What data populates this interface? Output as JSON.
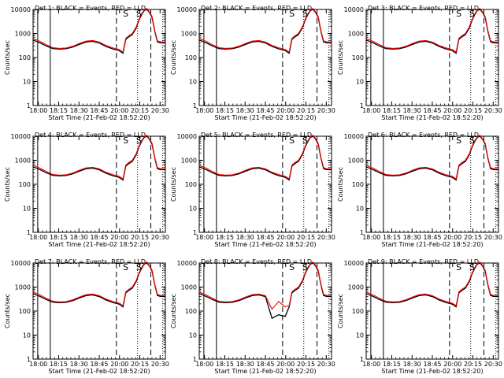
{
  "chart_data": {
    "type": "line",
    "common": {
      "xlabel": "Start Time (21-Feb-02 18:52:20)",
      "ylabel": "Counts/sec",
      "x_tick_labels": [
        "18:00",
        "18:15",
        "18:30",
        "18:45",
        "20:00",
        "20:15",
        "20:30"
      ],
      "y_tick_labels": [
        "1",
        "10",
        "100",
        "1000",
        "10000"
      ],
      "y_scale": "log",
      "ylim": [
        1,
        10000
      ],
      "grid": false,
      "x": [
        0.0,
        0.03,
        0.06,
        0.1,
        0.15,
        0.2,
        0.25,
        0.3,
        0.35,
        0.4,
        0.45,
        0.5,
        0.55,
        0.6,
        0.65,
        0.68,
        0.7,
        0.72,
        0.75,
        0.78,
        0.8,
        0.82,
        0.84,
        0.86,
        0.88,
        0.9,
        0.92,
        0.94,
        0.96,
        1.0
      ],
      "events_values": [
        540,
        460,
        390,
        300,
        235,
        225,
        232,
        270,
        350,
        440,
        470,
        400,
        290,
        230,
        195,
        150,
        560,
        700,
        900,
        1700,
        3500,
        6000,
        9000,
        10000,
        7500,
        4500,
        1200,
        450,
        410,
        400
      ],
      "lld_values": [
        620,
        530,
        450,
        340,
        255,
        240,
        250,
        295,
        385,
        480,
        510,
        440,
        320,
        255,
        215,
        170,
        620,
        780,
        1000,
        1900,
        3800,
        6500,
        9500,
        11000,
        8000,
        5000,
        1300,
        500,
        450,
        440
      ],
      "solid_lines_x": [
        0.035,
        0.13
      ],
      "dashed_lines_x": [
        0.63,
        0.89
      ],
      "dotted_lines_x": [
        0.79,
        0.98
      ],
      "markers": [
        {
          "label": "S",
          "x": 0.7
        },
        {
          "label": "S",
          "x": 0.8
        }
      ]
    },
    "panels": [
      {
        "title": "Det 1: BLACK = Events, RED = LLD"
      },
      {
        "title": "Det 2: BLACK = Events, RED = LLD"
      },
      {
        "title": "Det 3: BLACK = Events, RED = LLD"
      },
      {
        "title": "Det 4: BLACK = Events, RED = LLD"
      },
      {
        "title": "Det 5: BLACK = Events, RED = LLD"
      },
      {
        "title": "Det 6: BLACK = Events, RED = LLD"
      },
      {
        "title": "Det 7: BLACK = Events, RED = LLD"
      },
      {
        "title": "Det 8: BLACK = Events, RED = LLD",
        "events_values_override": {
          "indices": [
            12,
            13,
            14
          ],
          "values": [
            50,
            70,
            60
          ]
        },
        "lld_values_override": {
          "indices": [
            12,
            13,
            14
          ],
          "values": [
            120,
            250,
            150
          ]
        }
      },
      {
        "title": "Det 9: BLACK = Events, RED = LLD"
      }
    ],
    "colors": {
      "events": "#000000",
      "lld": "#ff0000",
      "axes": "#000000"
    }
  }
}
